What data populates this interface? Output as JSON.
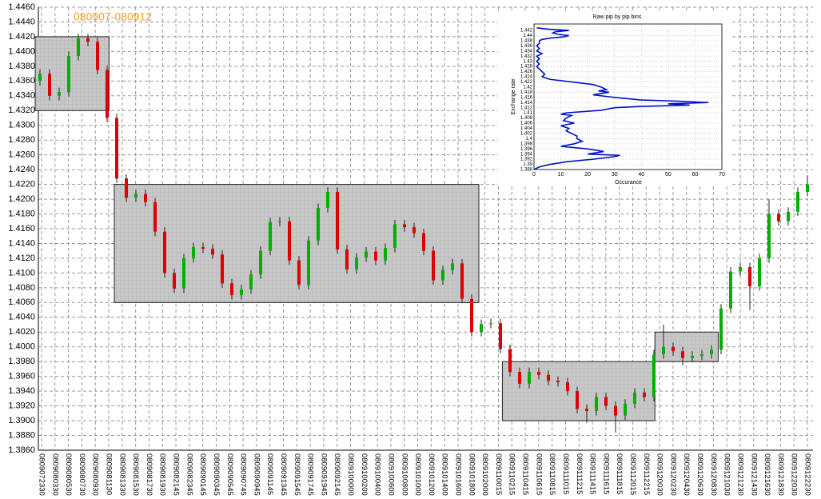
{
  "chart_data": [
    {
      "type": "candlestick",
      "title": "080907-080912",
      "categories": [
        "0809072330",
        "0809080330",
        "0809080530",
        "0809080730",
        "0809080930",
        "0809081130",
        "0809081330",
        "0809081530",
        "0809081730",
        "0809081930",
        "0809082145",
        "0809082345",
        "0809090145",
        "0809090345",
        "0809090545",
        "0809090745",
        "0809090945",
        "0809091145",
        "0809091345",
        "0809091545",
        "0809091745",
        "0809091945",
        "0809092145",
        "0809100000",
        "0809100200",
        "0809100400",
        "0809100600",
        "0809100800",
        "0809101000",
        "0809101200",
        "0809101400",
        "0809101600",
        "0809101800",
        "0809102000",
        "0809110015",
        "0809110215",
        "0809110415",
        "0809110615",
        "0809110815",
        "0809111015",
        "0809111215",
        "0809111415",
        "0809111615",
        "0809111815",
        "0809112015",
        "0809112215",
        "0809120030",
        "0809120230",
        "0809120430",
        "0809120630",
        "0809120830",
        "0809121030",
        "0809121230",
        "0809121430",
        "0809121630",
        "0809121830",
        "0809122030",
        "0809122230"
      ],
      "candles": [
        [
          1.436,
          1.4376,
          1.4354,
          1.437
        ],
        [
          1.437,
          1.4376,
          1.4334,
          1.434
        ],
        [
          1.434,
          1.4351,
          1.4334,
          1.4345
        ],
        [
          1.4345,
          1.44,
          1.4339,
          1.4394
        ],
        [
          1.4394,
          1.4424,
          1.4388,
          1.4418
        ],
        [
          1.4418,
          1.4424,
          1.4407,
          1.4413
        ],
        [
          1.4413,
          1.4419,
          1.4369,
          1.4375
        ],
        [
          1.4375,
          1.4381,
          1.4304,
          1.431
        ],
        [
          1.431,
          1.4316,
          1.4222,
          1.4228
        ],
        [
          1.4228,
          1.4234,
          1.4196,
          1.4202
        ],
        [
          1.4202,
          1.4213,
          1.4196,
          1.4207
        ],
        [
          1.4207,
          1.4213,
          1.419,
          1.4196
        ],
        [
          1.4196,
          1.4202,
          1.415,
          1.4156
        ],
        [
          1.4156,
          1.4162,
          1.4094,
          1.41
        ],
        [
          1.41,
          1.4106,
          1.4073,
          1.4079
        ],
        [
          1.4079,
          1.4126,
          1.4073,
          1.412
        ],
        [
          1.412,
          1.4141,
          1.4114,
          1.4135
        ],
        [
          1.4135,
          1.4141,
          1.4127,
          1.4133
        ],
        [
          1.4133,
          1.4139,
          1.4119,
          1.4125
        ],
        [
          1.4125,
          1.4131,
          1.408,
          1.4086
        ],
        [
          1.4086,
          1.4092,
          1.4064,
          1.407
        ],
        [
          1.407,
          1.4084,
          1.4064,
          1.4078
        ],
        [
          1.4078,
          1.4104,
          1.4072,
          1.4098
        ],
        [
          1.4098,
          1.4136,
          1.4092,
          1.413
        ],
        [
          1.413,
          1.4175,
          1.4124,
          1.4169
        ],
        [
          1.4169,
          1.4176,
          1.4163,
          1.417
        ],
        [
          1.417,
          1.4176,
          1.4111,
          1.4117
        ],
        [
          1.4117,
          1.4123,
          1.4078,
          1.4084
        ],
        [
          1.4084,
          1.415,
          1.4078,
          1.4144
        ],
        [
          1.4144,
          1.4194,
          1.4138,
          1.4188
        ],
        [
          1.4188,
          1.4216,
          1.4182,
          1.421
        ],
        [
          1.421,
          1.4216,
          1.4126,
          1.4132
        ],
        [
          1.4132,
          1.4138,
          1.4099,
          1.4105
        ],
        [
          1.4105,
          1.4127,
          1.4099,
          1.4121
        ],
        [
          1.4121,
          1.4135,
          1.4115,
          1.4129
        ],
        [
          1.4129,
          1.4135,
          1.4111,
          1.4117
        ],
        [
          1.4117,
          1.414,
          1.4111,
          1.4134
        ],
        [
          1.4134,
          1.4172,
          1.4128,
          1.4166
        ],
        [
          1.4166,
          1.4172,
          1.4156,
          1.4162
        ],
        [
          1.4162,
          1.4168,
          1.4148,
          1.4154
        ],
        [
          1.4154,
          1.416,
          1.4124,
          1.413
        ],
        [
          1.413,
          1.4136,
          1.4084,
          1.409
        ],
        [
          1.409,
          1.411,
          1.4084,
          1.4104
        ],
        [
          1.4104,
          1.4119,
          1.4098,
          1.4113
        ],
        [
          1.4113,
          1.4119,
          1.4059,
          1.4065
        ],
        [
          1.4065,
          1.4071,
          1.4014,
          1.402
        ],
        [
          1.402,
          1.4037,
          1.4014,
          1.4031
        ],
        [
          1.4031,
          1.4038,
          1.4025,
          1.4032
        ],
        [
          1.4032,
          1.4038,
          1.3991,
          1.3997
        ],
        [
          1.3997,
          1.4003,
          1.396,
          1.3966
        ],
        [
          1.3966,
          1.3972,
          1.3944,
          1.395
        ],
        [
          1.395,
          1.3972,
          1.3944,
          1.3966
        ],
        [
          1.3966,
          1.3972,
          1.3956,
          1.3962
        ],
        [
          1.3962,
          1.3968,
          1.3948,
          1.3954
        ],
        [
          1.3954,
          1.396,
          1.3946,
          1.3952
        ],
        [
          1.3952,
          1.3958,
          1.3934,
          1.394
        ],
        [
          1.394,
          1.3946,
          1.391,
          1.3916
        ],
        [
          1.3916,
          1.3922,
          1.3897,
          1.3913
        ],
        [
          1.3913,
          1.3938,
          1.3907,
          1.3932
        ],
        [
          1.3932,
          1.3938,
          1.3914,
          1.392
        ],
        [
          1.392,
          1.3926,
          1.3884,
          1.3907
        ],
        [
          1.3907,
          1.3929,
          1.3901,
          1.3923
        ],
        [
          1.3923,
          1.3944,
          1.3917,
          1.3938
        ],
        [
          1.3938,
          1.3944,
          1.3926,
          1.3932
        ],
        [
          1.3932,
          1.3996,
          1.3926,
          1.399
        ],
        [
          1.399,
          1.403,
          1.3984,
          1.4
        ],
        [
          1.4,
          1.4006,
          1.3988,
          1.3994
        ],
        [
          1.3994,
          1.4,
          1.3975,
          1.3985
        ],
        [
          1.3985,
          1.3994,
          1.3979,
          1.3988
        ],
        [
          1.3988,
          1.3996,
          1.3982,
          1.399
        ],
        [
          1.399,
          1.4002,
          1.3984,
          1.3996
        ],
        [
          1.3996,
          1.4058,
          1.399,
          1.4052
        ],
        [
          1.4052,
          1.4108,
          1.4046,
          1.4102
        ],
        [
          1.4102,
          1.4114,
          1.4096,
          1.4108
        ],
        [
          1.4108,
          1.4114,
          1.405,
          1.4082
        ],
        [
          1.4082,
          1.4126,
          1.4076,
          1.412
        ],
        [
          1.412,
          1.42,
          1.4114,
          1.418
        ],
        [
          1.418,
          1.4186,
          1.4164,
          1.417
        ],
        [
          1.417,
          1.4189,
          1.4164,
          1.4183
        ],
        [
          1.4183,
          1.4216,
          1.4177,
          1.421
        ],
        [
          1.421,
          1.4232,
          1.4204,
          1.422
        ]
      ],
      "boxes": [
        {
          "x": [
            -0.5,
            7.2
          ],
          "high": 1.442,
          "low": 1.432
        },
        {
          "x": [
            7.75,
            45.75
          ],
          "high": 1.422,
          "low": 1.406
        },
        {
          "x": [
            48.2,
            64.1
          ],
          "high": 1.398,
          "low": 1.39
        },
        {
          "x": [
            64.1,
            70.7
          ],
          "high": 1.402,
          "low": 1.398
        }
      ],
      "ylim": [
        1.386,
        1.446
      ],
      "yticks": [
        {
          "value": 1.386,
          "label": "1.3860"
        },
        {
          "value": 1.388,
          "label": "1.3880"
        },
        {
          "value": 1.39,
          "label": "1.3900"
        },
        {
          "value": 1.392,
          "label": "1.3920"
        },
        {
          "value": 1.394,
          "label": "1.3940"
        },
        {
          "value": 1.396,
          "label": "1.3960"
        },
        {
          "value": 1.398,
          "label": "1.3980"
        },
        {
          "value": 1.4,
          "label": "1.4000"
        },
        {
          "value": 1.402,
          "label": "1.4020"
        },
        {
          "value": 1.404,
          "label": "1.4040"
        },
        {
          "value": 1.406,
          "label": "1.4060"
        },
        {
          "value": 1.408,
          "label": "1.4080"
        },
        {
          "value": 1.41,
          "label": "1.4100"
        },
        {
          "value": 1.412,
          "label": "1.4120"
        },
        {
          "value": 1.414,
          "label": "1.4140"
        },
        {
          "value": 1.416,
          "label": "1.4160"
        },
        {
          "value": 1.418,
          "label": "1.4180"
        },
        {
          "value": 1.42,
          "label": "1.4200"
        },
        {
          "value": 1.422,
          "label": "1.4220"
        },
        {
          "value": 1.424,
          "label": "1.4240"
        },
        {
          "value": 1.426,
          "label": "1.4260"
        },
        {
          "value": 1.428,
          "label": "1.4280"
        },
        {
          "value": 1.43,
          "label": "1.4300"
        },
        {
          "value": 1.432,
          "label": "1.4320"
        },
        {
          "value": 1.434,
          "label": "1.4340"
        },
        {
          "value": 1.436,
          "label": "1.4360"
        },
        {
          "value": 1.438,
          "label": "1.4380"
        },
        {
          "value": 1.44,
          "label": "1.4400"
        },
        {
          "value": 1.442,
          "label": "1.4420"
        },
        {
          "value": 1.444,
          "label": "1.4440"
        },
        {
          "value": 1.446,
          "label": "1.4460"
        }
      ],
      "grid": true,
      "up_color": "#00b000",
      "down_color": "#e00000",
      "box_color": "#c8c8c8"
    },
    {
      "type": "line",
      "title": "Raw pip by pip bins",
      "xlabel": "Occurance",
      "ylabel": "Exchange rate",
      "x": [
        1,
        5,
        13,
        8,
        7,
        9,
        13,
        11,
        6,
        3,
        2,
        2,
        1,
        2,
        1,
        3,
        1,
        2,
        1,
        2,
        1,
        2,
        3,
        4,
        3,
        6,
        14,
        22,
        25,
        27,
        24,
        28,
        25,
        22,
        30,
        40,
        55,
        65,
        50,
        58,
        40,
        30,
        25,
        12,
        10,
        14,
        12,
        11,
        15,
        10,
        13,
        12,
        14,
        16,
        16,
        18,
        15,
        10,
        20,
        26,
        20,
        32,
        30,
        22,
        12,
        6,
        2,
        0
      ],
      "y": [
        1.443,
        1.4425,
        1.442,
        1.4415,
        1.441,
        1.4405,
        1.44,
        1.4395,
        1.439,
        1.4385,
        1.438,
        1.437,
        1.436,
        1.435,
        1.434,
        1.433,
        1.432,
        1.431,
        1.43,
        1.429,
        1.428,
        1.427,
        1.426,
        1.425,
        1.424,
        1.423,
        1.422,
        1.421,
        1.42,
        1.419,
        1.4185,
        1.418,
        1.4175,
        1.417,
        1.416,
        1.415,
        1.4145,
        1.414,
        1.4135,
        1.413,
        1.4125,
        1.412,
        1.411,
        1.41,
        1.4095,
        1.409,
        1.408,
        1.407,
        1.406,
        1.405,
        1.404,
        1.403,
        1.402,
        1.401,
        1.4,
        1.399,
        1.398,
        1.397,
        1.396,
        1.395,
        1.394,
        1.3935,
        1.393,
        1.392,
        1.391,
        1.39,
        1.389,
        1.388
      ],
      "xlim": [
        0,
        70
      ],
      "xticks": [
        0,
        10,
        20,
        30,
        40,
        50,
        60,
        70
      ],
      "ylim": [
        1.388,
        1.4445
      ],
      "yticks": [
        1.388,
        1.39,
        1.392,
        1.394,
        1.396,
        1.398,
        1.4,
        1.402,
        1.404,
        1.406,
        1.408,
        1.41,
        1.412,
        1.414,
        1.416,
        1.418,
        1.42,
        1.422,
        1.424,
        1.426,
        1.428,
        1.43,
        1.432,
        1.434,
        1.436,
        1.438,
        1.44,
        1.442
      ],
      "color": "#0010c8",
      "grid": true
    }
  ]
}
